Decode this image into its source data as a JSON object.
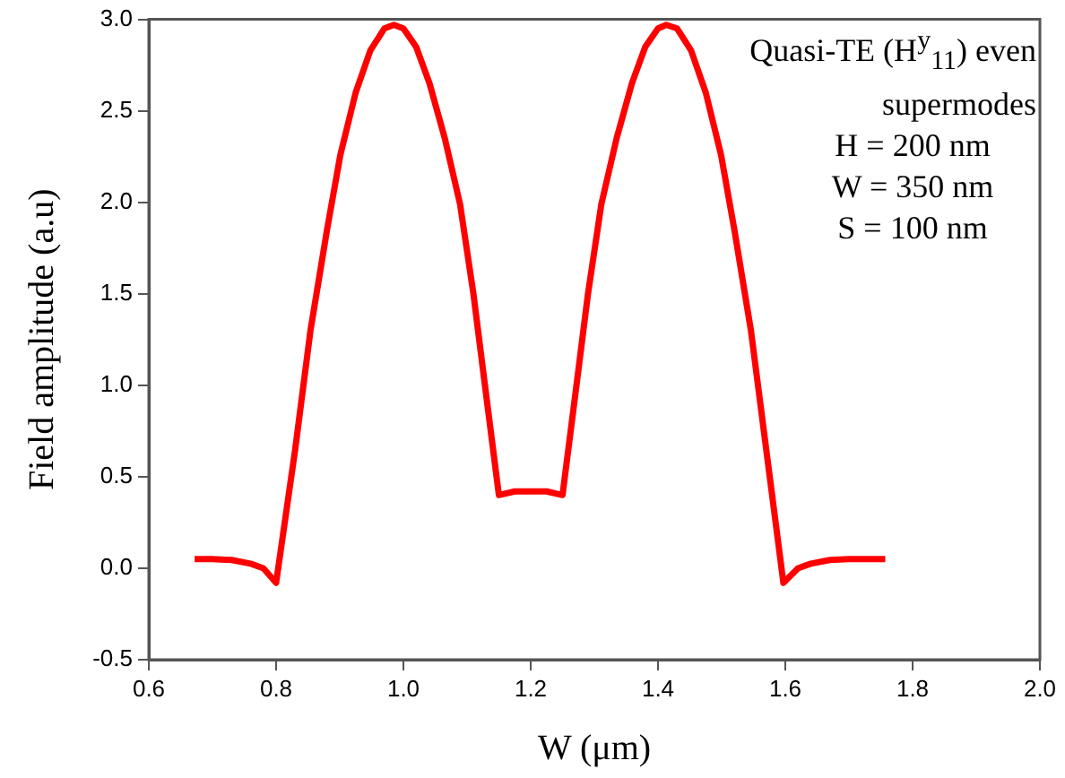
{
  "chart_data": {
    "type": "line",
    "xlabel": "W (μm)",
    "ylabel": "Field amplitude (a.u)",
    "annotations": [
      "Quasi-TE (H$^{y}$$_{11}$) even supermodes",
      "H = 200 nm",
      "W = 350 nm",
      "S = 100 nm"
    ],
    "xlim": [
      0.6,
      2.0
    ],
    "xticks": [
      0.6,
      0.8,
      {
        "value": 1.0,
        "label": "1.0"
      },
      1.2,
      1.4,
      1.6,
      1.8,
      {
        "value": 2.0,
        "label": "2.0"
      }
    ],
    "ylim": [
      -0.5,
      3.0
    ],
    "yticks": [
      -0.5,
      {
        "value": 0,
        "label": "0.0"
      },
      0.5,
      {
        "value": 1.0,
        "label": "1.0"
      },
      1.5,
      {
        "value": 2.0,
        "label": "2.0"
      },
      2.5,
      {
        "value": 3.0,
        "label": "3.0"
      }
    ],
    "grid": false,
    "series": [
      {
        "color": "#ff0000",
        "x": [
          0.672,
          0.7,
          0.73,
          0.76,
          0.78,
          0.8,
          0.83,
          0.854,
          0.88,
          0.901,
          0.925,
          0.948,
          0.97,
          0.985,
          1.0,
          1.02,
          1.041,
          1.065,
          1.089,
          1.11,
          1.127,
          1.15,
          1.175,
          1.2,
          1.225,
          1.25,
          1.273,
          1.29,
          1.311,
          1.335,
          1.359,
          1.38,
          1.4,
          1.413,
          1.43,
          1.452,
          1.475,
          1.499,
          1.52,
          1.546,
          1.57,
          1.597,
          1.62,
          1.64,
          1.67,
          1.7,
          1.757
        ],
        "values": [
          0.05,
          0.05,
          0.045,
          0.025,
          0.0,
          -0.08,
          0.65,
          1.3,
          1.85,
          2.26,
          2.6,
          2.83,
          2.95,
          2.97,
          2.95,
          2.85,
          2.65,
          2.35,
          1.99,
          1.5,
          1.03,
          0.4,
          0.42,
          0.42,
          0.42,
          0.4,
          1.03,
          1.5,
          1.99,
          2.35,
          2.65,
          2.85,
          2.95,
          2.97,
          2.95,
          2.83,
          2.6,
          2.26,
          1.85,
          1.3,
          0.65,
          -0.08,
          0.0,
          0.025,
          0.045,
          0.05,
          0.05
        ]
      }
    ]
  }
}
